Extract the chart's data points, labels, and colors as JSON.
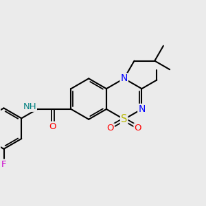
{
  "bg_color": "#ebebeb",
  "bond_color": "#000000",
  "bond_width": 1.5,
  "atom_colors": {
    "N": "#0000ff",
    "S": "#b8b800",
    "O": "#ff0000",
    "F": "#cc00cc",
    "NH": "#008080"
  },
  "fig_size": [
    3.0,
    3.0
  ],
  "dpi": 100
}
